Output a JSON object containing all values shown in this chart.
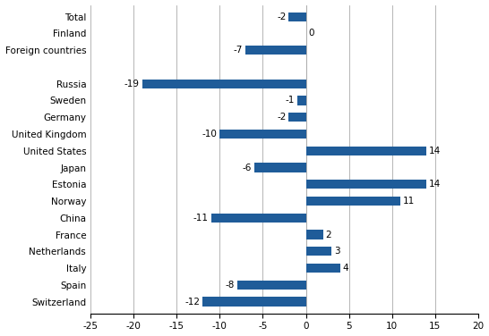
{
  "categories": [
    "Total",
    "Finland",
    "Foreign countries",
    "",
    "Russia",
    "Sweden",
    "Germany",
    "United Kingdom",
    "United States",
    "Japan",
    "Estonia",
    "Norway",
    "China",
    "France",
    "Netherlands",
    "Italy",
    "Spain",
    "Switzerland"
  ],
  "values": [
    -2,
    0,
    -7,
    null,
    -19,
    -1,
    -2,
    -10,
    14,
    -6,
    14,
    11,
    -11,
    2,
    3,
    4,
    -8,
    -12
  ],
  "bar_color": "#1F5C99",
  "xlim": [
    -25,
    20
  ],
  "xticks": [
    -25,
    -20,
    -15,
    -10,
    -5,
    0,
    5,
    10,
    15,
    20
  ],
  "label_fontsize": 7.5,
  "value_fontsize": 7.5,
  "bar_height": 0.55,
  "figsize": [
    5.46,
    3.76
  ],
  "dpi": 100
}
